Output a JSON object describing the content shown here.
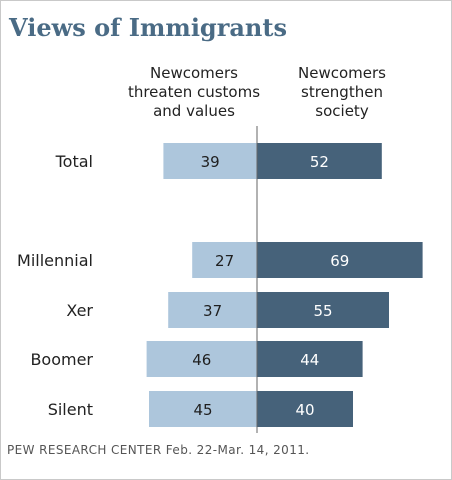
{
  "title": "Views of Immigrants",
  "columns": {
    "left": "Newcomers threaten customs and values",
    "left_lines": [
      "Newcomers",
      "threaten customs",
      "and values"
    ],
    "right": "Newcomers strengthen society",
    "right_lines": [
      "Newcomers",
      "strengthen",
      "society"
    ]
  },
  "footer": "PEW RESEARCH  CENTER Feb. 22-Mar. 14, 2011.",
  "colors": {
    "left_bar": "#adc6dc",
    "right_bar": "#46627a",
    "left_text": "#1f1f1f",
    "right_text": "#ffffff",
    "axis": "#666666",
    "title": "#4a6b85"
  },
  "chart_data": {
    "type": "bar",
    "orientation": "diverging-horizontal",
    "categories": [
      "Total",
      "Millennial",
      "Xer",
      "Boomer",
      "Silent"
    ],
    "series": [
      {
        "name": "Newcomers threaten customs and values",
        "values": [
          39,
          27,
          37,
          46,
          45
        ]
      },
      {
        "name": "Newcomers strengthen society",
        "values": [
          52,
          69,
          55,
          44,
          40
        ]
      }
    ],
    "xlim": [
      0,
      70
    ],
    "legend": "column headers above bars",
    "grid": false
  }
}
